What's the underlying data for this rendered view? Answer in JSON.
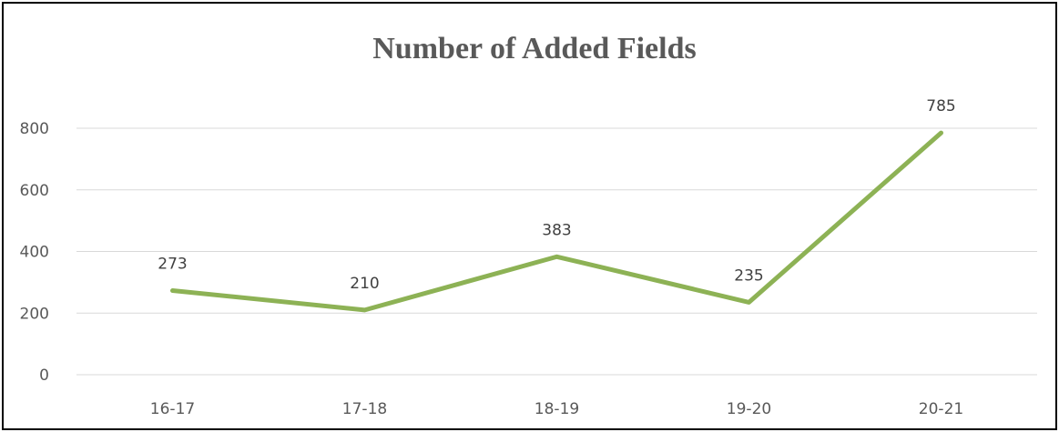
{
  "chart_data": {
    "type": "line",
    "title": "Number of Added Fields",
    "xlabel": "",
    "ylabel": "",
    "categories": [
      "16-17",
      "17-18",
      "18-19",
      "19-20",
      "20-21"
    ],
    "series": [
      {
        "values": [
          273,
          210,
          383,
          235,
          785
        ],
        "color": "#8db255"
      }
    ],
    "ylim": [
      0,
      800
    ],
    "yticks": [
      0,
      200,
      400,
      600,
      800
    ],
    "grid": true,
    "gridline_color": "#d9d9d9",
    "legend": "none",
    "data_labels": true
  }
}
